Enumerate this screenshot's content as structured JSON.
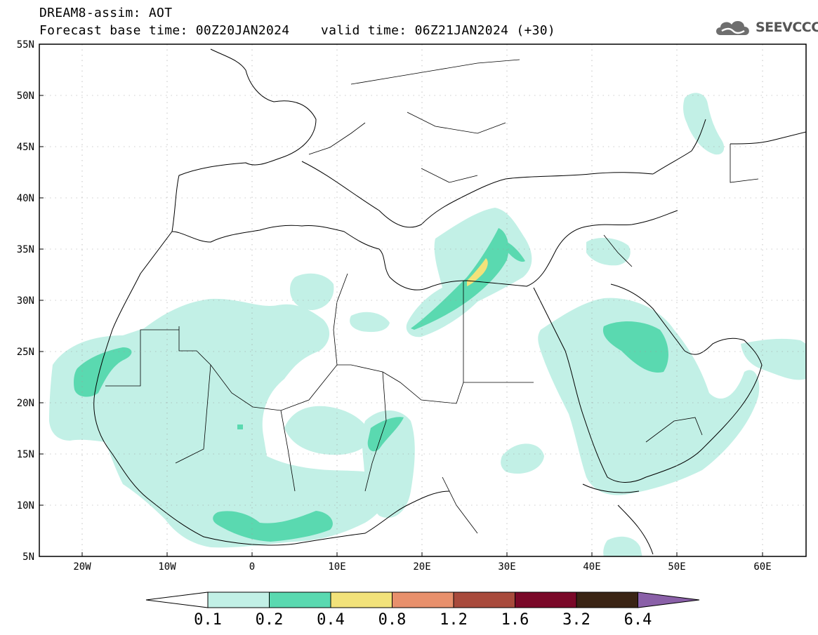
{
  "header": {
    "title_line1": "DREAM8-assim: AOT",
    "title_line2": "Forecast base time: 00Z20JAN2024    valid time: 06Z21JAN2024 (+30)",
    "logo_text": "SEEVCCC"
  },
  "axes": {
    "lon_ticks": [
      "20W",
      "10W",
      "0",
      "10E",
      "20E",
      "30E",
      "40E",
      "50E",
      "60E"
    ],
    "lat_ticks": [
      "55N",
      "50N",
      "45N",
      "40N",
      "35N",
      "30N",
      "25N",
      "20N",
      "15N",
      "10N",
      "5N"
    ]
  },
  "colorbar": {
    "labels": [
      "0.1",
      "0.2",
      "0.4",
      "0.8",
      "1.2",
      "1.6",
      "3.2",
      "6.4"
    ],
    "colors": [
      "#ffffff",
      "#c2f0e6",
      "#5ad9b0",
      "#f2e27a",
      "#e8906c",
      "#a84a3c",
      "#7a0828",
      "#3a2414",
      "#8a60a8"
    ]
  },
  "palette": {
    "light_teal": "#c2f0e6",
    "teal": "#5ad9b0",
    "yellow": "#f2e27a",
    "border_line": "#000000"
  }
}
